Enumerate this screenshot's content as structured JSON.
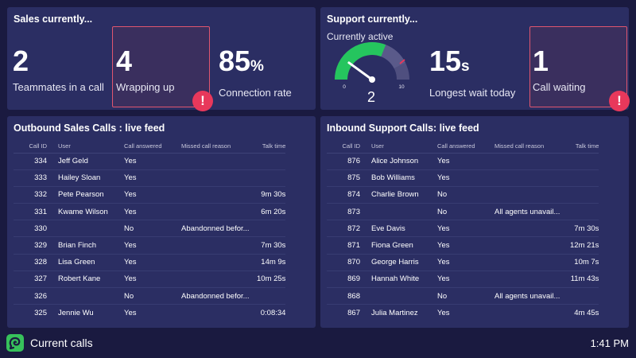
{
  "sales": {
    "title": "Sales currently...",
    "teammates": {
      "value": "2",
      "label": "Teammates in a call"
    },
    "wrapping": {
      "value": "4",
      "label": "Wrapping up"
    },
    "connection": {
      "value": "85",
      "unit": "%",
      "label": "Connection rate"
    }
  },
  "support": {
    "title": "Support currently...",
    "active": {
      "label": "Currently active",
      "value": "2",
      "min": "0",
      "max": "10",
      "fraction": 0.2
    },
    "longest": {
      "value": "15",
      "unit": "s",
      "label": "Longest wait today"
    },
    "waiting": {
      "value": "1",
      "label": "Call waiting"
    }
  },
  "colors": {
    "alert": "#e8385b",
    "gauge_green": "#25c55e",
    "panel": "#2b2e63",
    "background": "#1a1a40"
  },
  "outbound": {
    "title": "Outbound Sales Calls : live feed",
    "columns": [
      "Call ID",
      "User",
      "Call answered",
      "Missed call reason",
      "Talk time"
    ],
    "rows": [
      [
        "334",
        "Jeff Geld",
        "Yes",
        "",
        ""
      ],
      [
        "333",
        "Hailey Sloan",
        "Yes",
        "",
        ""
      ],
      [
        "332",
        "Pete Pearson",
        "Yes",
        "",
        "9m 30s"
      ],
      [
        "331",
        "Kwame Wilson",
        "Yes",
        "",
        "6m 20s"
      ],
      [
        "330",
        "",
        "No",
        "Abandonned befor...",
        ""
      ],
      [
        "329",
        "Brian Finch",
        "Yes",
        "",
        "7m 30s"
      ],
      [
        "328",
        "Lisa Green",
        "Yes",
        "",
        "14m 9s"
      ],
      [
        "327",
        "Robert Kane",
        "Yes",
        "",
        "10m 25s"
      ],
      [
        "326",
        "",
        "No",
        "Abandonned befor...",
        ""
      ],
      [
        "325",
        "Jennie Wu",
        "Yes",
        "",
        "0:08:34"
      ]
    ]
  },
  "inbound": {
    "title": "Inbound Support Calls: live feed",
    "columns": [
      "Call ID",
      "User",
      "Call answered",
      "Missed call reason",
      "Talk time"
    ],
    "rows": [
      [
        "876",
        "Alice Johnson",
        "Yes",
        "",
        ""
      ],
      [
        "875",
        "Bob Williams",
        "Yes",
        "",
        ""
      ],
      [
        "874",
        "Charlie Brown",
        "No",
        "",
        ""
      ],
      [
        "873",
        "",
        "No",
        "All agents unavail...",
        ""
      ],
      [
        "872",
        "Eve Davis",
        "Yes",
        "",
        "7m 30s"
      ],
      [
        "871",
        "Fiona Green",
        "Yes",
        "",
        "12m 21s"
      ],
      [
        "870",
        "George Harris",
        "Yes",
        "",
        "10m 7s"
      ],
      [
        "869",
        "Hannah White",
        "Yes",
        "",
        "11m 43s"
      ],
      [
        "868",
        "",
        "No",
        "All agents unavail...",
        ""
      ],
      [
        "867",
        "Julia Martinez",
        "Yes",
        "",
        "4m 45s"
      ]
    ]
  },
  "footer": {
    "title": "Current calls",
    "time": "1:41 PM",
    "logo_icon": "geckoboard-logo-icon"
  }
}
